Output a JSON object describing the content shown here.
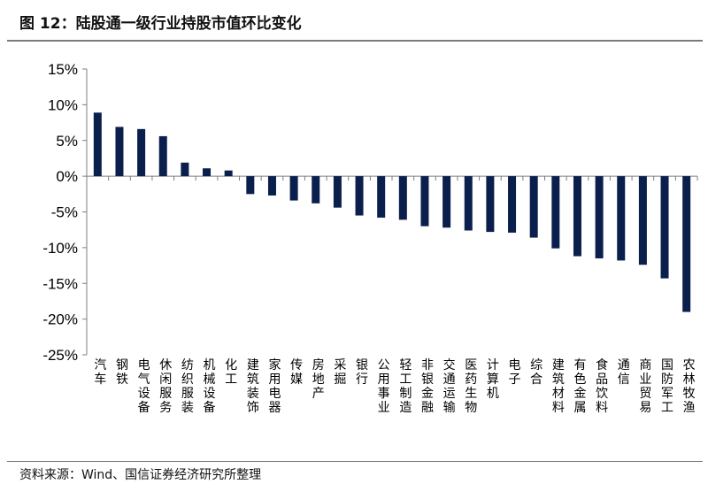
{
  "header": {
    "title": "图 12：陆股通一级行业持股市值环比变化"
  },
  "footer": {
    "source": "资料来源：Wind、国信证券经济研究所整理"
  },
  "chart_data": {
    "type": "bar",
    "title": "",
    "xlabel": "",
    "ylabel": "",
    "ylim": [
      -25,
      15
    ],
    "yticks": [
      15,
      10,
      5,
      0,
      -5,
      -10,
      -15,
      -20,
      -25
    ],
    "ytick_labels": [
      "15%",
      "10%",
      "5%",
      "0%",
      "-5%",
      "-10%",
      "-15%",
      "-20%",
      "-25%"
    ],
    "grid": false,
    "legend": "none",
    "bar_color": "#0b1f4d",
    "categories": [
      "汽车",
      "钢铁",
      "电气设备",
      "休闲服务",
      "纺织服装",
      "机械设备",
      "化工",
      "建筑装饰",
      "家用电器",
      "传媒",
      "房地产",
      "采掘",
      "银行",
      "公用事业",
      "轻工制造",
      "非银金融",
      "交通运输",
      "医药生物",
      "计算机",
      "电子",
      "综合",
      "建筑材料",
      "有色金属",
      "食品饮料",
      "通信",
      "商业贸易",
      "国防军工",
      "农林牧渔"
    ],
    "values": [
      8.9,
      6.9,
      6.6,
      5.6,
      1.9,
      1.1,
      0.8,
      -2.5,
      -2.7,
      -3.4,
      -3.8,
      -4.4,
      -5.5,
      -5.8,
      -6.1,
      -7.0,
      -7.2,
      -7.6,
      -7.8,
      -7.9,
      -8.6,
      -10.1,
      -11.2,
      -11.5,
      -11.8,
      -12.4,
      -14.3,
      -19.0
    ]
  }
}
